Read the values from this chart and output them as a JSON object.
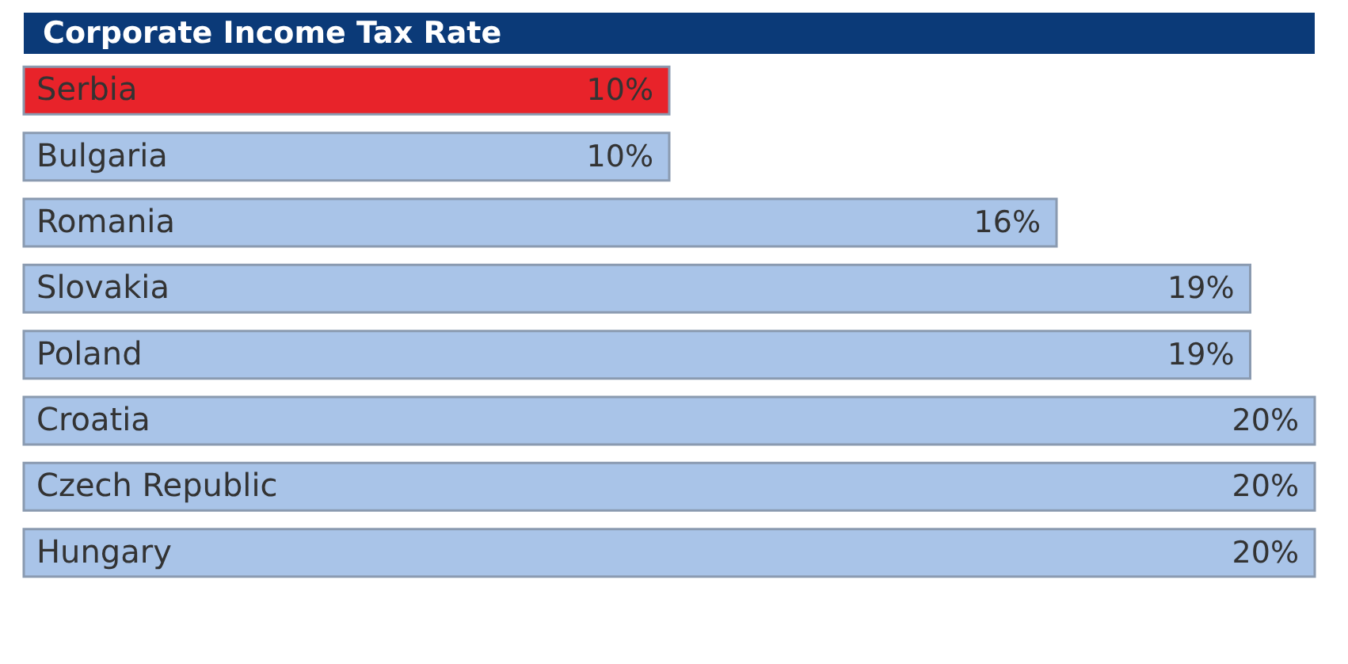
{
  "chart_data": {
    "type": "bar",
    "orientation": "horizontal",
    "title": "Corporate Income Tax Rate",
    "categories": [
      "Serbia",
      "Bulgaria",
      "Romania",
      "Slovakia",
      "Poland",
      "Croatia",
      "Czech Republic",
      "Hungary"
    ],
    "values": [
      10,
      10,
      16,
      19,
      19,
      20,
      20,
      20
    ],
    "colors": [
      "#e8232a",
      "#a9c4e8",
      "#a9c4e8",
      "#a9c4e8",
      "#a9c4e8",
      "#a9c4e8",
      "#a9c4e8",
      "#a9c4e8"
    ],
    "value_labels": [
      "10%",
      "10%",
      "16%",
      "19%",
      "19%",
      "20%",
      "20%",
      "20%"
    ]
  }
}
